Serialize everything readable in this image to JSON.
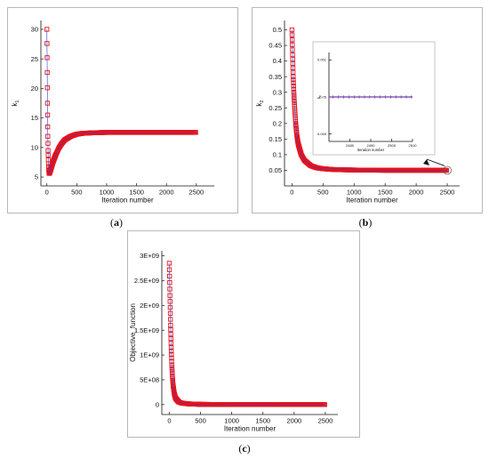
{
  "chart_data": [
    {
      "type": "line",
      "panel_label": "a",
      "xlabel": "Iteration number",
      "ylabel": "k1",
      "xlim": [
        -100,
        2800
      ],
      "ylim": [
        3.5,
        31.5
      ],
      "xticks": [
        0,
        500,
        1000,
        1500,
        2000,
        2500
      ],
      "yticks": [
        5,
        10,
        15,
        20,
        25,
        30
      ],
      "series": [
        {
          "color": "#e8131a",
          "marker_edge": "#e8131a",
          "line_color": "#3a3ac8",
          "points": [
            [
              0,
              30
            ],
            [
              5,
              24
            ],
            [
              10,
              17.5
            ],
            [
              15,
              12.5
            ],
            [
              20,
              9.5
            ],
            [
              25,
              7.5
            ],
            [
              30,
              6.3
            ],
            [
              35,
              5.8
            ],
            [
              40,
              5.6
            ],
            [
              50,
              5.8
            ],
            [
              75,
              6.6
            ],
            [
              100,
              7.5
            ],
            [
              150,
              8.8
            ],
            [
              200,
              9.9
            ],
            [
              250,
              10.7
            ],
            [
              300,
              11.3
            ],
            [
              400,
              11.9
            ],
            [
              500,
              12.25
            ],
            [
              600,
              12.4
            ],
            [
              800,
              12.5
            ],
            [
              1000,
              12.55
            ],
            [
              1500,
              12.55
            ],
            [
              2000,
              12.55
            ],
            [
              2500,
              12.55
            ]
          ]
        }
      ]
    },
    {
      "type": "line",
      "panel_label": "b",
      "xlabel": "Iteration number",
      "ylabel": "k2",
      "xlim": [
        -120,
        2700
      ],
      "ylim": [
        0,
        0.53
      ],
      "xticks": [
        0,
        500,
        1000,
        1500,
        2000,
        2500
      ],
      "yticks": [
        0.05,
        0.1,
        0.15,
        0.2,
        0.25,
        0.3,
        0.35,
        0.4,
        0.45,
        0.5
      ],
      "series": [
        {
          "color": "#e8131a",
          "marker_edge": "#e8131a",
          "line_color": "#3a3ac8",
          "points": [
            [
              0,
              0.5
            ],
            [
              10,
              0.42
            ],
            [
              20,
              0.35
            ],
            [
              30,
              0.3
            ],
            [
              40,
              0.26
            ],
            [
              60,
              0.2
            ],
            [
              80,
              0.16
            ],
            [
              100,
              0.135
            ],
            [
              150,
              0.1
            ],
            [
              200,
              0.082
            ],
            [
              300,
              0.065
            ],
            [
              400,
              0.058
            ],
            [
              500,
              0.055
            ],
            [
              700,
              0.052
            ],
            [
              1000,
              0.051
            ],
            [
              1500,
              0.05
            ],
            [
              2000,
              0.05
            ],
            [
              2500,
              0.05
            ]
          ]
        }
      ],
      "inset": {
        "type": "line",
        "xlabel": "Iteration number",
        "ylabel": "k2",
        "xlim": [
          2470,
          2510
        ],
        "ylim": [
          0.0488,
          0.0512
        ],
        "xticks": [
          2480,
          2490,
          2500,
          2510
        ],
        "xtick_labels": [
          "2480",
          "2490",
          "2500",
          "2510"
        ],
        "yticks": [
          0.049,
          0.05,
          0.051
        ],
        "ytick_labels": [
          "0.049",
          "0.05",
          "0.051"
        ],
        "series": [
          {
            "color": "#7a3aa8",
            "points": [
              [
                2470,
                0.05
              ],
              [
                2510,
                0.05
              ]
            ]
          }
        ]
      }
    },
    {
      "type": "line",
      "panel_label": "c",
      "xlabel": "Iteration number",
      "ylabel": "Objective_function",
      "xlim": [
        -120,
        2700
      ],
      "ylim": [
        -200000000,
        3100000000
      ],
      "xticks": [
        0,
        500,
        1000,
        1500,
        2000,
        2500
      ],
      "yticks": [
        0,
        500000000,
        1000000000,
        1500000000,
        2000000000,
        2500000000,
        3000000000
      ],
      "ytick_labels": [
        "0",
        "5E+08",
        "1E+09",
        "1.5E+09",
        "2E+09",
        "2.5E+09",
        "3E+09"
      ],
      "series": [
        {
          "color": "#e8131a",
          "marker_edge": "#e8131a",
          "line_color": "#3a3ac8",
          "points": [
            [
              0,
              2850000000
            ],
            [
              10,
              2200000000
            ],
            [
              20,
              1600000000
            ],
            [
              30,
              1150000000
            ],
            [
              40,
              800000000
            ],
            [
              50,
              560000000
            ],
            [
              60,
              400000000
            ],
            [
              80,
              220000000
            ],
            [
              100,
              130000000
            ],
            [
              150,
              55000000
            ],
            [
              200,
              30000000
            ],
            [
              300,
              15000000
            ],
            [
              500,
              5000000
            ],
            [
              1000,
              1000000
            ],
            [
              1500,
              0
            ],
            [
              2000,
              0
            ],
            [
              2500,
              0
            ]
          ]
        }
      ]
    }
  ]
}
